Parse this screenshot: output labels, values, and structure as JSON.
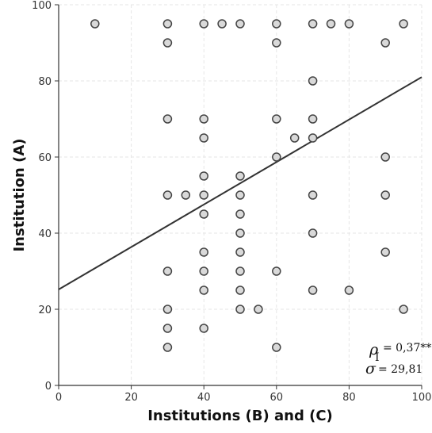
{
  "chart_data": {
    "type": "scatter",
    "xlabel": "Institutions (B) and (C)",
    "ylabel": "Institution (A)",
    "xlim": [
      0,
      100
    ],
    "ylim": [
      0,
      100
    ],
    "xticks": [
      "0",
      "20",
      "40",
      "60",
      "80",
      "100"
    ],
    "yticks": [
      "0",
      "20",
      "40",
      "60",
      "80",
      "100"
    ],
    "grid": true,
    "points": [
      [
        10,
        95
      ],
      [
        30,
        95
      ],
      [
        40,
        95
      ],
      [
        45,
        95
      ],
      [
        50,
        95
      ],
      [
        60,
        95
      ],
      [
        70,
        95
      ],
      [
        75,
        95
      ],
      [
        80,
        95
      ],
      [
        95,
        95
      ],
      [
        30,
        90
      ],
      [
        60,
        90
      ],
      [
        90,
        90
      ],
      [
        70,
        80
      ],
      [
        30,
        70
      ],
      [
        40,
        70
      ],
      [
        60,
        70
      ],
      [
        70,
        70
      ],
      [
        40,
        65
      ],
      [
        65,
        65
      ],
      [
        70,
        65
      ],
      [
        60,
        60
      ],
      [
        90,
        60
      ],
      [
        40,
        55
      ],
      [
        50,
        55
      ],
      [
        30,
        50
      ],
      [
        35,
        50
      ],
      [
        40,
        50
      ],
      [
        50,
        50
      ],
      [
        70,
        50
      ],
      [
        90,
        50
      ],
      [
        40,
        45
      ],
      [
        50,
        45
      ],
      [
        50,
        40
      ],
      [
        70,
        40
      ],
      [
        40,
        35
      ],
      [
        50,
        35
      ],
      [
        90,
        35
      ],
      [
        30,
        30
      ],
      [
        40,
        30
      ],
      [
        50,
        30
      ],
      [
        60,
        30
      ],
      [
        40,
        25
      ],
      [
        50,
        25
      ],
      [
        70,
        25
      ],
      [
        80,
        25
      ],
      [
        30,
        20
      ],
      [
        50,
        20
      ],
      [
        55,
        20
      ],
      [
        95,
        20
      ],
      [
        30,
        15
      ],
      [
        40,
        15
      ],
      [
        30,
        10
      ],
      [
        60,
        10
      ]
    ],
    "trendline": {
      "x": [
        0,
        100
      ],
      "y": [
        25.2,
        81.0
      ]
    },
    "colors": {
      "marker_fill": "#d9d9d9",
      "marker_edge": "#444444",
      "line": "#333333",
      "grid": "#e6e6e6"
    },
    "annotations": {
      "rho_symbol": "ρ",
      "rho_subscript": "I",
      "rho_value": "= 0,37**",
      "sigma_symbol": "σ",
      "sigma_value": "= 29,81"
    }
  }
}
